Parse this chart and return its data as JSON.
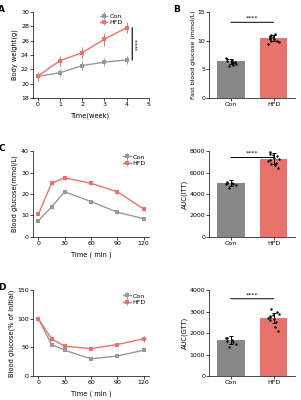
{
  "panel_A": {
    "label": "A",
    "con_x": [
      0,
      1,
      2,
      3,
      4
    ],
    "con_y": [
      21.0,
      21.5,
      22.5,
      23.0,
      23.3
    ],
    "con_err": [
      0.5,
      0.5,
      0.6,
      0.6,
      0.5
    ],
    "hfd_x": [
      0,
      1,
      2,
      3,
      4
    ],
    "hfd_y": [
      21.0,
      23.2,
      24.3,
      26.2,
      27.8
    ],
    "hfd_err": [
      0.6,
      0.7,
      0.8,
      0.9,
      0.8
    ],
    "ylabel": "Body weight(g)",
    "xlabel": "Time(week)",
    "ylim": [
      18,
      30
    ],
    "yticks": [
      18,
      20,
      22,
      24,
      26,
      28,
      30
    ],
    "xticks": [
      0,
      1,
      2,
      3,
      4,
      5
    ],
    "sig_text": "****"
  },
  "panel_B": {
    "label": "B",
    "con_val": 6.4,
    "con_err": 0.45,
    "hfd_val": 10.5,
    "hfd_err": 0.55,
    "ylabel": "Fast blood glucose (mmol/L)",
    "ylim": [
      0,
      15
    ],
    "yticks": [
      0,
      5,
      10,
      15
    ],
    "sig_text": "****",
    "con_dots": [
      5.6,
      5.9,
      6.1,
      6.3,
      6.5,
      6.8,
      7.0,
      6.2,
      6.6,
      5.8
    ],
    "hfd_dots": [
      9.4,
      9.8,
      10.0,
      10.2,
      10.5,
      10.8,
      11.0,
      10.3,
      10.6,
      9.9,
      11.2,
      10.7
    ]
  },
  "panel_C": {
    "label": "C",
    "con_x": [
      0,
      15,
      30,
      60,
      90,
      120
    ],
    "con_y": [
      7.5,
      14.0,
      21.0,
      16.5,
      11.5,
      8.5
    ],
    "con_err": [
      0.4,
      0.8,
      1.0,
      0.9,
      0.7,
      0.5
    ],
    "hfd_x": [
      0,
      15,
      30,
      60,
      90,
      120
    ],
    "hfd_y": [
      10.5,
      25.0,
      27.5,
      25.0,
      21.0,
      13.0
    ],
    "hfd_err": [
      0.5,
      1.0,
      1.1,
      1.0,
      0.9,
      0.7
    ],
    "ylabel": "Blood glucose(mmol/L)",
    "xlabel": "Time ( min )",
    "ylim": [
      0,
      40
    ],
    "yticks": [
      0,
      10,
      20,
      30,
      40
    ],
    "xticks": [
      0,
      30,
      60,
      90,
      120
    ]
  },
  "panel_C_bar": {
    "con_val": 5000,
    "con_err": 280,
    "hfd_val": 7300,
    "hfd_err": 480,
    "ylabel": "AUC(ITT)",
    "ylim": [
      0,
      8000
    ],
    "yticks": [
      0,
      2000,
      4000,
      6000,
      8000
    ],
    "sig_text": "****",
    "con_dots": [
      4600,
      4800,
      4950,
      5050,
      5150,
      5000,
      4900
    ],
    "hfd_dots": [
      6400,
      6700,
      6900,
      7100,
      7300,
      7500,
      7700,
      7900,
      7200,
      6800,
      7400,
      7600
    ]
  },
  "panel_D": {
    "label": "D",
    "con_x": [
      0,
      15,
      30,
      60,
      90,
      120
    ],
    "con_y": [
      100,
      55,
      45,
      30,
      35,
      45
    ],
    "con_err": [
      0,
      3,
      2,
      2,
      2,
      2
    ],
    "hfd_x": [
      0,
      15,
      30,
      60,
      90,
      120
    ],
    "hfd_y": [
      100,
      65,
      52,
      48,
      55,
      65
    ],
    "hfd_err": [
      0,
      4,
      3,
      3,
      3,
      5
    ],
    "ylabel": "Blood glucose(% of initial)",
    "xlabel": "Time ( min )",
    "ylim": [
      0,
      150
    ],
    "yticks": [
      0,
      50,
      100,
      150
    ],
    "xticks": [
      0,
      30,
      60,
      90,
      120
    ]
  },
  "panel_D_bar": {
    "con_val": 1680,
    "con_err": 180,
    "hfd_val": 2700,
    "hfd_err": 240,
    "ylabel": "AUC(GTT)",
    "ylim": [
      0,
      4000
    ],
    "yticks": [
      0,
      1000,
      2000,
      3000,
      4000
    ],
    "sig_text": "****",
    "con_dots": [
      1350,
      1480,
      1580,
      1680,
      1780,
      1650,
      1750
    ],
    "hfd_dots": [
      2100,
      2300,
      2500,
      2700,
      2900,
      3000,
      2800,
      2600,
      2750,
      3100,
      2650,
      2850
    ]
  },
  "con_color": "#999999",
  "hfd_color": "#E8736C",
  "con_bar_color": "#888888",
  "hfd_bar_color": "#E8736C"
}
